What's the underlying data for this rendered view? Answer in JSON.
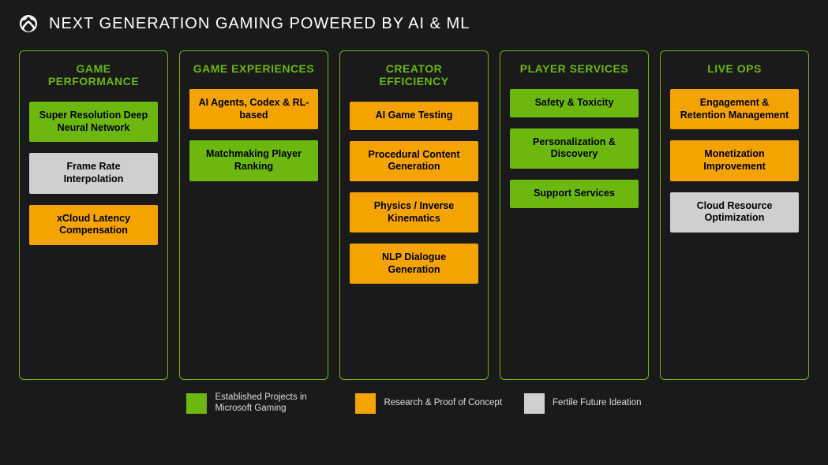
{
  "title": "NEXT GENERATION GAMING POWERED BY AI & ML",
  "colors": {
    "green": "#6db80f",
    "orange": "#f5a300",
    "grey": "#cfcfcf",
    "background": "#1a1a1a",
    "border": "#6db80f"
  },
  "columns": [
    {
      "title": "GAME PERFORMANCE",
      "cards": [
        {
          "label": "Super Resolution Deep Neural Network",
          "kind": "green"
        },
        {
          "label": "Frame Rate Interpolation",
          "kind": "grey"
        },
        {
          "label": "xCloud Latency Compensation",
          "kind": "orange"
        }
      ]
    },
    {
      "title": "GAME EXPERIENCES",
      "cards": [
        {
          "label": "AI Agents, Codex & RL-based",
          "kind": "orange"
        },
        {
          "label": "Matchmaking Player Ranking",
          "kind": "green"
        }
      ]
    },
    {
      "title": "CREATOR EFFICIENCY",
      "cards": [
        {
          "label": "AI Game Testing",
          "kind": "orange"
        },
        {
          "label": "Procedural Content Generation",
          "kind": "orange"
        },
        {
          "label": "Physics / Inverse Kinematics",
          "kind": "orange"
        },
        {
          "label": "NLP Dialogue Generation",
          "kind": "orange"
        }
      ]
    },
    {
      "title": "PLAYER SERVICES",
      "cards": [
        {
          "label": "Safety & Toxicity",
          "kind": "green"
        },
        {
          "label": "Personalization & Discovery",
          "kind": "green"
        },
        {
          "label": "Support Services",
          "kind": "green"
        }
      ]
    },
    {
      "title": "LIVE OPS",
      "cards": [
        {
          "label": "Engagement & Retention Management",
          "kind": "orange"
        },
        {
          "label": "Monetization Improvement",
          "kind": "orange"
        },
        {
          "label": "Cloud Resource Optimization",
          "kind": "grey"
        }
      ]
    }
  ],
  "legend": [
    {
      "kind": "green",
      "label": "Established Projects in Microsoft Gaming"
    },
    {
      "kind": "orange",
      "label": "Research & Proof of Concept"
    },
    {
      "kind": "grey",
      "label": "Fertile Future Ideation"
    }
  ]
}
